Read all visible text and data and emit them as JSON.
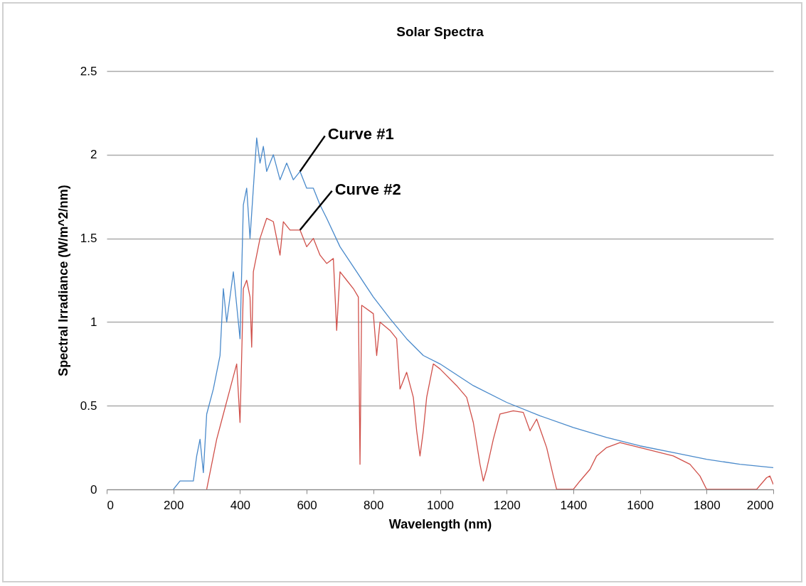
{
  "chart_data": {
    "type": "line",
    "title": "Solar Spectra",
    "xlabel": "Wavelength (nm)",
    "ylabel": "Spectral Irradiance (W/m^2/nm)",
    "xlim": [
      0,
      2000
    ],
    "xticks": [
      0,
      200,
      400,
      600,
      800,
      1000,
      1200,
      1400,
      1600,
      1800,
      2000
    ],
    "ylim": [
      0,
      2.5
    ],
    "yticks": [
      0,
      0.5,
      1,
      1.5,
      2,
      2.5
    ],
    "grid": "y",
    "series": [
      {
        "name": "Curve #1",
        "color": "#4a8acb",
        "x": [
          200,
          220,
          260,
          270,
          280,
          290,
          300,
          320,
          340,
          350,
          360,
          380,
          400,
          410,
          420,
          430,
          440,
          450,
          460,
          470,
          480,
          500,
          520,
          540,
          560,
          580,
          600,
          620,
          640,
          660,
          700,
          750,
          800,
          850,
          900,
          950,
          1000,
          1100,
          1200,
          1300,
          1400,
          1500,
          1600,
          1700,
          1800,
          1900,
          2000
        ],
        "values": [
          0,
          0.05,
          0.05,
          0.2,
          0.3,
          0.1,
          0.45,
          0.6,
          0.8,
          1.2,
          1.0,
          1.3,
          0.9,
          1.7,
          1.8,
          1.5,
          1.8,
          2.1,
          1.95,
          2.05,
          1.9,
          2.0,
          1.85,
          1.95,
          1.85,
          1.9,
          1.8,
          1.8,
          1.7,
          1.62,
          1.45,
          1.3,
          1.15,
          1.02,
          0.9,
          0.8,
          0.75,
          0.62,
          0.52,
          0.44,
          0.37,
          0.31,
          0.26,
          0.22,
          0.18,
          0.15,
          0.13
        ]
      },
      {
        "name": "Curve #2",
        "color": "#d0504a",
        "x": [
          300,
          310,
          330,
          350,
          370,
          390,
          400,
          410,
          420,
          430,
          435,
          440,
          460,
          480,
          500,
          520,
          530,
          550,
          580,
          600,
          620,
          640,
          660,
          680,
          690,
          700,
          720,
          740,
          755,
          760,
          765,
          800,
          810,
          820,
          850,
          870,
          880,
          900,
          920,
          930,
          940,
          950,
          960,
          980,
          1000,
          1050,
          1080,
          1100,
          1120,
          1130,
          1140,
          1160,
          1180,
          1220,
          1250,
          1270,
          1290,
          1320,
          1340,
          1350,
          1400,
          1420,
          1450,
          1470,
          1500,
          1540,
          1600,
          1700,
          1750,
          1780,
          1800,
          1950,
          1980,
          1990,
          2000
        ],
        "values": [
          0,
          0.1,
          0.3,
          0.45,
          0.6,
          0.75,
          0.4,
          1.2,
          1.25,
          1.15,
          0.85,
          1.3,
          1.5,
          1.62,
          1.6,
          1.4,
          1.6,
          1.55,
          1.55,
          1.45,
          1.5,
          1.4,
          1.35,
          1.38,
          0.95,
          1.3,
          1.25,
          1.2,
          1.15,
          0.15,
          1.1,
          1.05,
          0.8,
          1.0,
          0.95,
          0.9,
          0.6,
          0.7,
          0.55,
          0.35,
          0.2,
          0.35,
          0.55,
          0.75,
          0.72,
          0.62,
          0.55,
          0.4,
          0.15,
          0.05,
          0.12,
          0.3,
          0.45,
          0.47,
          0.46,
          0.35,
          0.42,
          0.25,
          0.08,
          0,
          0,
          0.05,
          0.12,
          0.2,
          0.25,
          0.28,
          0.25,
          0.2,
          0.15,
          0.08,
          0,
          0,
          0.07,
          0.08,
          0.03
        ]
      }
    ]
  }
}
